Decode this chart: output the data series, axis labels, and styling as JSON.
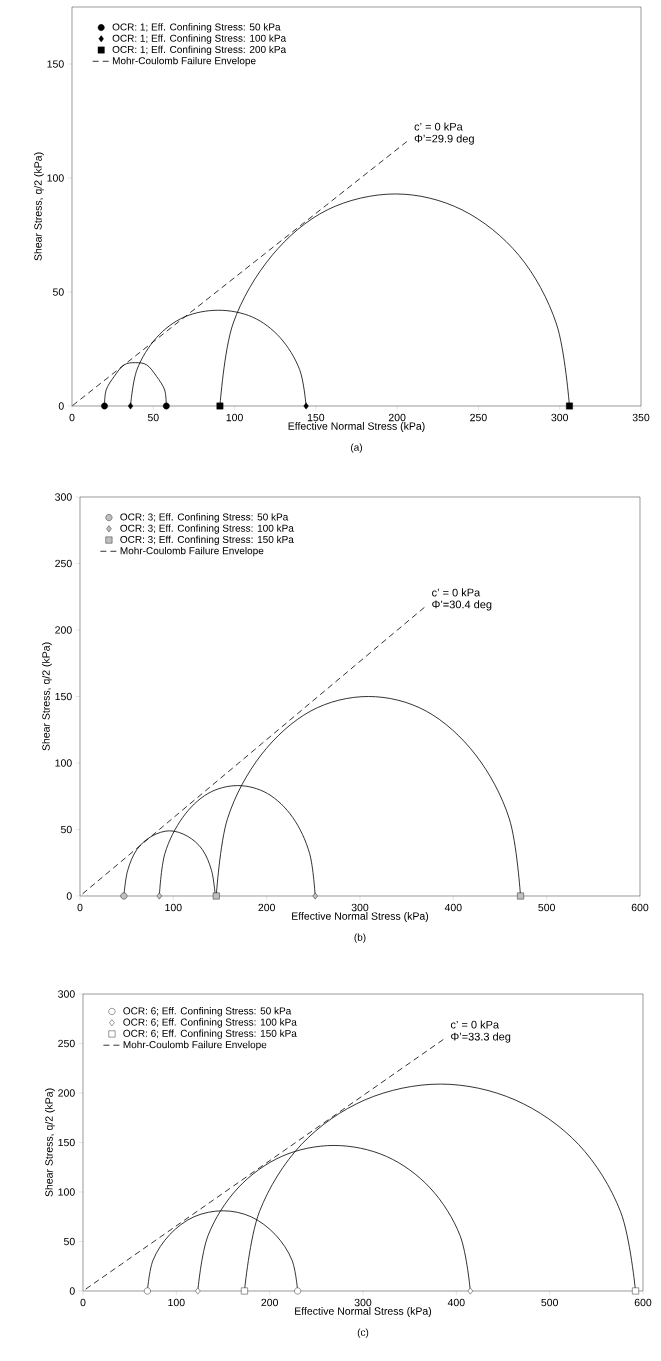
{
  "chart_data": [
    {
      "type": "line",
      "xlabel": "Effective Normal Stress (kPa)",
      "ylabel": "Shear Stress, q/2 (kPa)",
      "xlim": [
        0,
        350
      ],
      "ylim": [
        0,
        175
      ],
      "xticks": [
        0,
        50,
        100,
        150,
        200,
        250,
        300,
        350
      ],
      "yticks": [
        0,
        50,
        100,
        150
      ],
      "legend": "top left",
      "series": [
        {
          "color": "#000000",
          "x": [
            58,
            57,
            52,
            46,
            39,
            32,
            26,
            21,
            20
          ],
          "values": [
            0,
            7,
            13,
            18,
            19,
            18,
            13,
            7,
            0
          ]
        },
        {
          "color": "#000000",
          "x": [
            144,
            140,
            128,
            111,
            90,
            69,
            52,
            40,
            36
          ],
          "values": [
            0,
            16,
            30,
            39,
            42,
            39,
            30,
            16,
            0
          ]
        },
        {
          "color": "#000000",
          "x": [
            306,
            298,
            275,
            240,
            199,
            157,
            123,
            99,
            91
          ],
          "values": [
            0,
            36,
            66,
            86,
            93,
            86,
            66,
            36,
            0
          ]
        },
        {
          "type": "scatter",
          "name": "OCR: 1; Eff. Confining Stress: 50 kPa",
          "color": "#000000",
          "marker": "circle",
          "x": [
            20,
            58
          ],
          "values": [
            0,
            0
          ]
        },
        {
          "type": "scatter",
          "name": "OCR: 1; Eff. Confining Stress: 100 kPa",
          "color": "#000000",
          "marker": "diamond",
          "x": [
            36,
            144
          ],
          "values": [
            0,
            0
          ]
        },
        {
          "type": "scatter",
          "name": "OCR: 1; Eff. Confining Stress: 200 kPa",
          "color": "#000000",
          "marker": "square",
          "x": [
            91,
            306
          ],
          "values": [
            0,
            0
          ]
        },
        {
          "name": "Mohr-Coulomb Failure Envelope",
          "color": "#000000",
          "line_style": "dashed",
          "x": [
            0,
            206
          ],
          "values": [
            0,
            116
          ]
        }
      ],
      "annotations": [
        "c’ = 0 kPa",
        "Φ’=29.9 deg",
        "(a)"
      ]
    },
    {
      "type": "line",
      "xlabel": "Effective Normal Stress (kPa)",
      "ylabel": "Shear Stress, q/2 (kPa)",
      "xlim": [
        0,
        600
      ],
      "ylim": [
        0,
        300
      ],
      "xticks": [
        0,
        100,
        200,
        300,
        400,
        500,
        600
      ],
      "yticks": [
        0,
        50,
        100,
        150,
        200,
        250,
        300
      ],
      "legend": "top left",
      "series": [
        {
          "color": "#000000",
          "x": [
            145,
            141,
            131,
            115,
            96,
            77,
            61,
            51,
            47
          ],
          "values": [
            0,
            19,
            35,
            45,
            49,
            45,
            35,
            19,
            0
          ]
        },
        {
          "color": "#000000",
          "x": [
            252,
            246,
            228,
            201,
            169,
            137,
            110,
            91,
            85
          ],
          "values": [
            0,
            32,
            59,
            77,
            83,
            77,
            59,
            32,
            0
          ]
        },
        {
          "color": "#000000",
          "x": [
            472,
            460,
            424,
            371,
            309,
            247,
            194,
            158,
            146
          ],
          "values": [
            0,
            58,
            106,
            139,
            150,
            139,
            106,
            58,
            0
          ]
        },
        {
          "type": "scatter",
          "name": "OCR: 3; Eff. Confining Stress: 50 kPa",
          "color": "#bfbfbf",
          "marker": "circle",
          "x": [
            47
          ],
          "values": [
            0
          ]
        },
        {
          "type": "scatter",
          "name": "OCR: 3; Eff. Confining Stress: 100 kPa",
          "color": "#bfbfbf",
          "marker": "diamond",
          "x": [
            85,
            252
          ],
          "values": [
            0,
            0
          ]
        },
        {
          "type": "scatter",
          "name": "OCR: 3; Eff. Confining Stress: 150 kPa",
          "color": "#bfbfbf",
          "marker": "square",
          "x": [
            146,
            472
          ],
          "values": [
            0,
            0
          ]
        },
        {
          "name": "Mohr-Coulomb Failure Envelope",
          "color": "#000000",
          "line_style": "dashed",
          "x": [
            0,
            369
          ],
          "values": [
            0,
            217
          ]
        }
      ],
      "annotations": [
        "c’ = 0 kPa",
        "Φ’=30.4 deg",
        "(b)"
      ]
    },
    {
      "type": "line",
      "xlabel": "Effective Normal Stress (kPa)",
      "ylabel": "Shear Stress, q/2 (kPa)",
      "xlim": [
        0,
        600
      ],
      "ylim": [
        0,
        300
      ],
      "xticks": [
        0,
        100,
        200,
        300,
        400,
        500,
        600
      ],
      "yticks": [
        0,
        50,
        100,
        150,
        200,
        250,
        300
      ],
      "legend": "top left",
      "series": [
        {
          "color": "#000000",
          "x": [
            230,
            224,
            206,
            180,
            150,
            119,
            93,
            75,
            69
          ],
          "values": [
            0,
            31,
            57,
            75,
            81,
            75,
            57,
            31,
            0
          ]
        },
        {
          "color": "#000000",
          "x": [
            415,
            404,
            372,
            325,
            269,
            213,
            166,
            134,
            123
          ],
          "values": [
            0,
            56,
            104,
            136,
            147,
            136,
            104,
            56,
            0
          ]
        },
        {
          "color": "#000000",
          "x": [
            592,
            576,
            531,
            463,
            383,
            302,
            234,
            189,
            173
          ],
          "values": [
            0,
            80,
            148,
            193,
            209,
            193,
            148,
            80,
            0
          ]
        },
        {
          "type": "scatter",
          "name": "OCR: 6; Eff. Confining Stress: 50 kPa",
          "color": "#ffffff",
          "marker": "circle",
          "x": [
            69,
            230
          ],
          "values": [
            0,
            0
          ]
        },
        {
          "type": "scatter",
          "name": "OCR: 6; Eff. Confining Stress: 100 kPa",
          "color": "#ffffff",
          "marker": "diamond",
          "x": [
            123,
            415
          ],
          "values": [
            0,
            0
          ]
        },
        {
          "type": "scatter",
          "name": "OCR: 6; Eff. Confining Stress: 150 kPa",
          "color": "#ffffff",
          "marker": "square",
          "x": [
            173,
            592
          ],
          "values": [
            0,
            0
          ]
        },
        {
          "name": "Mohr-Coulomb Failure Envelope",
          "color": "#000000",
          "line_style": "dashed",
          "x": [
            0,
            386
          ],
          "values": [
            0,
            254
          ]
        }
      ],
      "annotations": [
        "c’ = 0 kPa",
        "Φ’=33.3 deg",
        "(c)"
      ]
    }
  ]
}
